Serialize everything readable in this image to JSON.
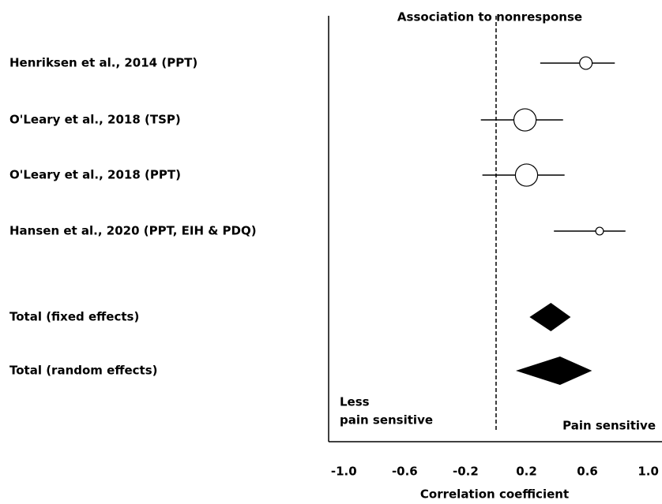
{
  "chart_data": {
    "type": "forest",
    "title": "Association to nonresponse",
    "xlabel": "Correlation coefficient",
    "studies": {
      "categories": [
        "Henriksen et al., 2014 (PPT)",
        "O'Leary et al., 2018 (TSP)",
        "O'Leary et al., 2018 (PPT)",
        "Hansen et al., 2020 (PPT, EIH & PDQ)"
      ],
      "values": [
        0.59,
        0.19,
        0.2,
        0.68
      ],
      "lower": [
        0.29,
        -0.1,
        -0.09,
        0.38
      ],
      "upper": [
        0.78,
        0.44,
        0.45,
        0.85
      ],
      "weights": [
        13,
        41,
        41,
        5
      ]
    },
    "pooled": {
      "categories": [
        "Total (fixed effects)",
        "Total (random effects)"
      ],
      "values": [
        0.36,
        0.42
      ],
      "lower": [
        0.22,
        0.13
      ],
      "upper": [
        0.49,
        0.63
      ]
    },
    "annotations": [
      "Less",
      "pain sensitive",
      "Pain sensitive"
    ],
    "xlim": [
      -1.1,
      1.09
    ],
    "xticks": [
      {
        "value": -1,
        "label": "-1.0"
      },
      -0.6,
      -0.2,
      0.2,
      0.6,
      {
        "value": 1,
        "label": "1.0"
      }
    ],
    "reference": 0,
    "color": "#000000"
  }
}
